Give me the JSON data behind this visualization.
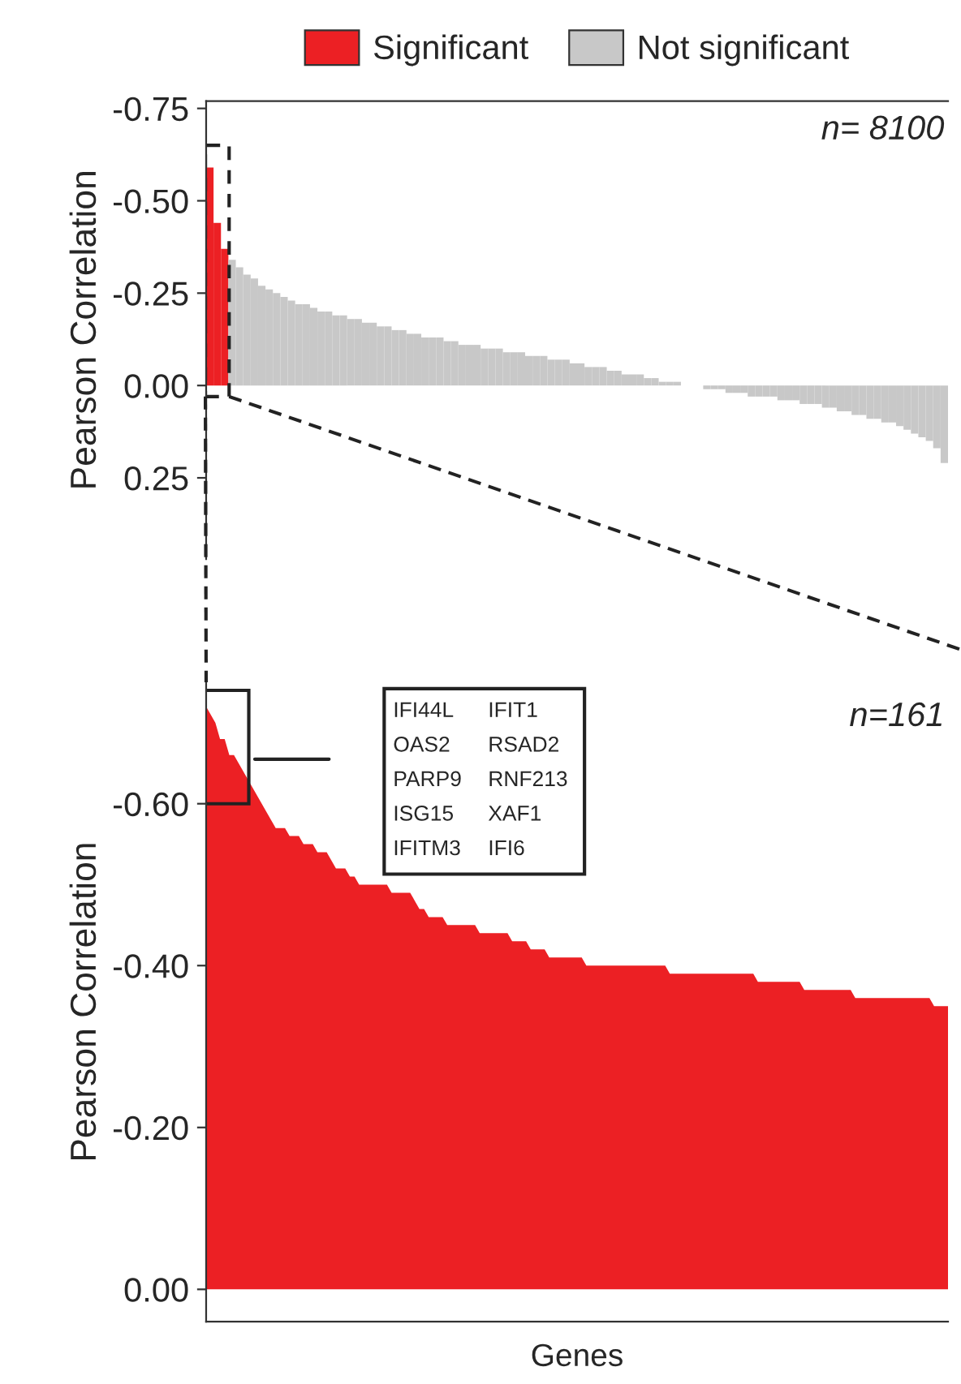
{
  "chart_data": [
    {
      "type": "bar",
      "ylabel": "Pearson Correlation",
      "legend": "top",
      "grid": false,
      "tick_labels": "y",
      "categories": [
        null,
        null,
        null,
        null,
        null,
        null,
        null,
        null,
        null,
        null,
        null,
        null,
        null,
        null,
        null,
        null,
        null,
        null,
        null,
        null,
        null,
        null,
        null,
        null,
        null,
        null,
        null,
        null,
        null,
        null,
        null,
        null,
        null,
        null,
        null,
        null,
        null,
        null,
        null,
        null,
        null,
        null,
        null,
        null,
        null,
        null,
        null,
        null,
        null,
        null,
        null,
        null,
        null,
        null,
        null,
        null,
        null,
        null,
        null,
        null,
        null,
        null,
        null,
        null,
        null,
        null,
        null,
        null,
        null,
        null,
        null,
        null,
        null,
        null,
        null,
        null,
        null,
        null,
        null,
        null,
        null,
        null,
        null,
        null,
        null,
        null,
        null,
        null,
        null,
        null,
        null,
        null,
        null,
        null,
        null,
        null,
        null,
        null,
        null,
        null
      ],
      "ylim": [
        0.47,
        -0.77
      ],
      "yticks": [
        {
          "value": -0.75,
          "label": "-0.75"
        },
        {
          "value": -0.5,
          "label": "-0.50"
        },
        {
          "value": -0.25,
          "label": "-0.25"
        },
        {
          "value": 0,
          "label": "0.00"
        },
        {
          "value": 0.25,
          "label": "0.25"
        }
      ],
      "annotations": [
        "n= 8100"
      ],
      "series": [
        {
          "name": "Significant",
          "color": "#ec2024",
          "values": [
            -0.59,
            -0.44,
            -0.37,
            null,
            null,
            null,
            null,
            null,
            null,
            null,
            null,
            null,
            null,
            null,
            null,
            null,
            null,
            null,
            null,
            null,
            null,
            null,
            null,
            null,
            null,
            null,
            null,
            null,
            null,
            null,
            null,
            null,
            null,
            null,
            null,
            null,
            null,
            null,
            null,
            null,
            null,
            null,
            null,
            null,
            null,
            null,
            null,
            null,
            null,
            null,
            null,
            null,
            null,
            null,
            null,
            null,
            null,
            null,
            null,
            null,
            null,
            null,
            null,
            null,
            null,
            null,
            null,
            null,
            null,
            null,
            null,
            null,
            null,
            null,
            null,
            null,
            null,
            null,
            null,
            null,
            null,
            null,
            null,
            null,
            null,
            null,
            null,
            null,
            null,
            null,
            null,
            null,
            null,
            null,
            null,
            null,
            null,
            null,
            null,
            null
          ]
        },
        {
          "name": "Not significant",
          "color": "#c8c8c8",
          "values": [
            null,
            null,
            null,
            -0.34,
            -0.32,
            -0.3,
            -0.29,
            -0.27,
            -0.26,
            -0.25,
            -0.24,
            -0.23,
            -0.22,
            -0.22,
            -0.21,
            -0.2,
            -0.2,
            -0.19,
            -0.19,
            -0.18,
            -0.18,
            -0.17,
            -0.17,
            -0.16,
            -0.16,
            -0.15,
            -0.15,
            -0.14,
            -0.14,
            -0.13,
            -0.13,
            -0.13,
            -0.12,
            -0.12,
            -0.11,
            -0.11,
            -0.11,
            -0.1,
            -0.1,
            -0.1,
            -0.09,
            -0.09,
            -0.09,
            -0.08,
            -0.08,
            -0.08,
            -0.07,
            -0.07,
            -0.07,
            -0.06,
            -0.06,
            -0.05,
            -0.05,
            -0.05,
            -0.04,
            -0.04,
            -0.03,
            -0.03,
            -0.03,
            -0.02,
            -0.02,
            -0.01,
            -0.01,
            -0.01,
            0.0,
            0.0,
            0.0,
            0.01,
            0.01,
            0.01,
            0.02,
            0.02,
            0.02,
            0.03,
            0.03,
            0.03,
            0.03,
            0.04,
            0.04,
            0.04,
            0.05,
            0.05,
            0.05,
            0.06,
            0.06,
            0.07,
            0.07,
            0.08,
            0.08,
            0.09,
            0.09,
            0.1,
            0.1,
            0.11,
            0.12,
            0.13,
            0.14,
            0.15,
            0.17,
            0.21
          ]
        }
      ]
    },
    {
      "type": "area",
      "ylabel": "Pearson Correlation",
      "xlabel": "Genes",
      "grid": false,
      "tick_labels": "y",
      "categories": [
        null,
        null,
        null,
        null,
        null,
        null,
        null,
        null,
        null,
        null,
        null,
        null,
        null,
        null,
        null,
        null,
        null,
        null,
        null,
        null,
        null,
        null,
        null,
        null,
        null,
        null,
        null,
        null,
        null,
        null,
        null,
        null,
        null,
        null,
        null,
        null,
        null,
        null,
        null,
        null,
        null,
        null,
        null,
        null,
        null,
        null,
        null,
        null,
        null,
        null,
        null,
        null,
        null,
        null,
        null,
        null,
        null,
        null,
        null,
        null,
        null,
        null,
        null,
        null,
        null,
        null,
        null,
        null,
        null,
        null,
        null,
        null,
        null,
        null,
        null,
        null,
        null,
        null,
        null,
        null,
        null,
        null,
        null,
        null,
        null,
        null,
        null,
        null,
        null,
        null,
        null,
        null,
        null,
        null,
        null,
        null,
        null,
        null,
        null,
        null,
        null,
        null,
        null,
        null,
        null,
        null,
        null,
        null,
        null,
        null,
        null,
        null,
        null,
        null,
        null,
        null,
        null,
        null,
        null,
        null,
        null,
        null,
        null,
        null,
        null,
        null,
        null,
        null,
        null,
        null,
        null,
        null,
        null,
        null,
        null,
        null,
        null,
        null,
        null,
        null,
        null,
        null,
        null,
        null,
        null,
        null,
        null,
        null,
        null,
        null,
        null,
        null,
        null,
        null,
        null,
        null,
        null,
        null,
        null,
        null,
        null
      ],
      "ylim": [
        0.04,
        -0.75
      ],
      "yticks": [
        {
          "value": -0.6,
          "label": "-0.60"
        },
        {
          "value": -0.4,
          "label": "-0.40"
        },
        {
          "value": -0.2,
          "label": "-0.20"
        },
        {
          "value": 0,
          "label": "0.00"
        }
      ],
      "annotations": [
        "n=161",
        "IFI44L",
        "IFIT1",
        "OAS2",
        "RSAD2",
        "PARP9",
        "RNF213",
        "ISG15",
        "XAF1",
        "IFITM3",
        "IFI6"
      ],
      "color": "#ec2024",
      "values": [
        -0.72,
        -0.71,
        -0.7,
        -0.68,
        -0.68,
        -0.66,
        -0.66,
        -0.65,
        -0.64,
        -0.63,
        -0.62,
        -0.61,
        -0.6,
        -0.59,
        -0.58,
        -0.57,
        -0.57,
        -0.57,
        -0.56,
        -0.56,
        -0.56,
        -0.55,
        -0.55,
        -0.55,
        -0.54,
        -0.54,
        -0.54,
        -0.53,
        -0.52,
        -0.52,
        -0.52,
        -0.51,
        -0.51,
        -0.5,
        -0.5,
        -0.5,
        -0.5,
        -0.5,
        -0.5,
        -0.5,
        -0.49,
        -0.49,
        -0.49,
        -0.49,
        -0.49,
        -0.48,
        -0.47,
        -0.47,
        -0.46,
        -0.46,
        -0.46,
        -0.46,
        -0.45,
        -0.45,
        -0.45,
        -0.45,
        -0.45,
        -0.45,
        -0.45,
        -0.44,
        -0.44,
        -0.44,
        -0.44,
        -0.44,
        -0.44,
        -0.44,
        -0.43,
        -0.43,
        -0.43,
        -0.43,
        -0.42,
        -0.42,
        -0.42,
        -0.42,
        -0.41,
        -0.41,
        -0.41,
        -0.41,
        -0.41,
        -0.41,
        -0.41,
        -0.41,
        -0.4,
        -0.4,
        -0.4,
        -0.4,
        -0.4,
        -0.4,
        -0.4,
        -0.4,
        -0.4,
        -0.4,
        -0.4,
        -0.4,
        -0.4,
        -0.4,
        -0.4,
        -0.4,
        -0.4,
        -0.4,
        -0.39,
        -0.39,
        -0.39,
        -0.39,
        -0.39,
        -0.39,
        -0.39,
        -0.39,
        -0.39,
        -0.39,
        -0.39,
        -0.39,
        -0.39,
        -0.39,
        -0.39,
        -0.39,
        -0.39,
        -0.39,
        -0.39,
        -0.38,
        -0.38,
        -0.38,
        -0.38,
        -0.38,
        -0.38,
        -0.38,
        -0.38,
        -0.38,
        -0.38,
        -0.37,
        -0.37,
        -0.37,
        -0.37,
        -0.37,
        -0.37,
        -0.37,
        -0.37,
        -0.37,
        -0.37,
        -0.37,
        -0.36,
        -0.36,
        -0.36,
        -0.36,
        -0.36,
        -0.36,
        -0.36,
        -0.36,
        -0.36,
        -0.36,
        -0.36,
        -0.36,
        -0.36,
        -0.36,
        -0.36,
        -0.36,
        -0.36,
        -0.35,
        -0.35,
        -0.35,
        -0.35
      ]
    }
  ]
}
